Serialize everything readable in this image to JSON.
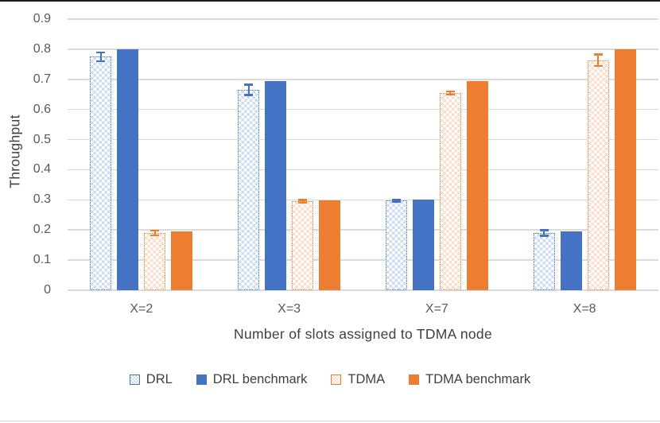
{
  "colors": {
    "blue": "#4472C4",
    "orange": "#ED7D31",
    "blue_light": "#CEDCF2",
    "orange_light": "#FADECC",
    "gridline": "#DBDBDB",
    "tick_text": "#595959",
    "title_text": "#404040"
  },
  "chart_data": {
    "type": "bar",
    "title": "",
    "xlabel": "Number of slots assigned to TDMA node",
    "ylabel": "Throughput",
    "ylim": [
      0,
      0.9
    ],
    "yticks": [
      "0",
      "0.1",
      "0.2",
      "0.3",
      "0.4",
      "0.5",
      "0.6",
      "0.7",
      "0.8",
      "0.9"
    ],
    "grid": true,
    "legend_position": "bottom",
    "categories": [
      "X=2",
      "X=3",
      "X=7",
      "X=8"
    ],
    "series": [
      {
        "name": "DRL",
        "style": "pattern-blue",
        "values": [
          0.775,
          0.665,
          0.297,
          0.19
        ],
        "errors": [
          0.015,
          0.018,
          0.003,
          0.01
        ]
      },
      {
        "name": "DRL benchmark",
        "style": "solid-blue",
        "values": [
          0.8,
          0.695,
          0.3,
          0.195
        ],
        "errors": null
      },
      {
        "name": "TDMA",
        "style": "pattern-orange",
        "values": [
          0.19,
          0.295,
          0.655,
          0.763
        ],
        "errors": [
          0.008,
          0.005,
          0.006,
          0.02
        ]
      },
      {
        "name": "TDMA benchmark",
        "style": "solid-orange",
        "values": [
          0.195,
          0.298,
          0.695,
          0.8
        ],
        "errors": null
      }
    ]
  }
}
